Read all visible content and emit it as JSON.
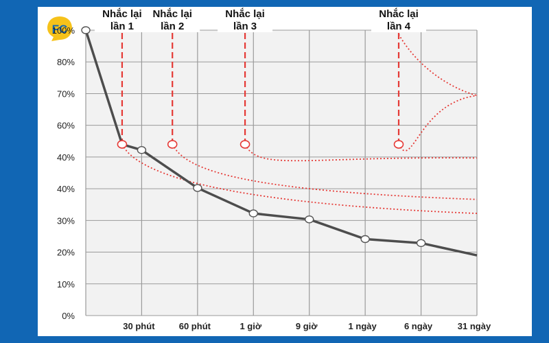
{
  "logo": {
    "text": "FC",
    "icon": "fc-logo-icon",
    "colors": {
      "bubble": "#f6c21a",
      "text": "#1166b4"
    }
  },
  "colors": {
    "background": "#1166b4",
    "card": "#ffffff",
    "main_curve": "#4d4d4d",
    "review_curve": "#e53935",
    "grid": "#9a9a9a"
  },
  "chart_data": {
    "type": "line",
    "y_tick_labels": [
      "0%",
      "10%",
      "20%",
      "30%",
      "40%",
      "40%",
      "60%",
      "70%",
      "80%",
      "100%"
    ],
    "x_tick_labels": [
      "30 phút",
      "60 phút",
      "1 giờ",
      "9 giờ",
      "1 ngày",
      "6 ngày",
      "31 ngày"
    ],
    "ylim": [
      0,
      100
    ],
    "grid": true,
    "series": [
      {
        "points": [
          {
            "x": 0,
            "y": 100
          },
          {
            "x": 0.65,
            "y": 60
          },
          {
            "x": 1,
            "y": 58
          },
          {
            "x": 2,
            "y": 44.7
          },
          {
            "x": 3,
            "y": 35.8
          },
          {
            "x": 4,
            "y": 33.7
          },
          {
            "x": 5,
            "y": 26.8
          },
          {
            "x": 6,
            "y": 25.4
          },
          {
            "x": 7,
            "y": 21.1
          }
        ],
        "markers_at": [
          0,
          2,
          3,
          4,
          5,
          6,
          7
        ]
      }
    ],
    "reviews": [
      {
        "label_line1": "Nhắc lại",
        "label_line2": "lần 1",
        "x": 0.65,
        "y": 60,
        "end_y": 35.8
      },
      {
        "label_line1": "Nhắc lại",
        "label_line2": "lần 2",
        "x": 1.55,
        "y": 60,
        "end_y": 40.7
      },
      {
        "label_line1": "Nhắc lại",
        "label_line2": "lần 3",
        "x": 2.85,
        "y": 60,
        "end_y": 55.2
      },
      {
        "label_line1": "Nhắc lại",
        "label_line2": "lần 4",
        "x": 5.6,
        "y": 60,
        "end_y": 77.1
      }
    ]
  }
}
